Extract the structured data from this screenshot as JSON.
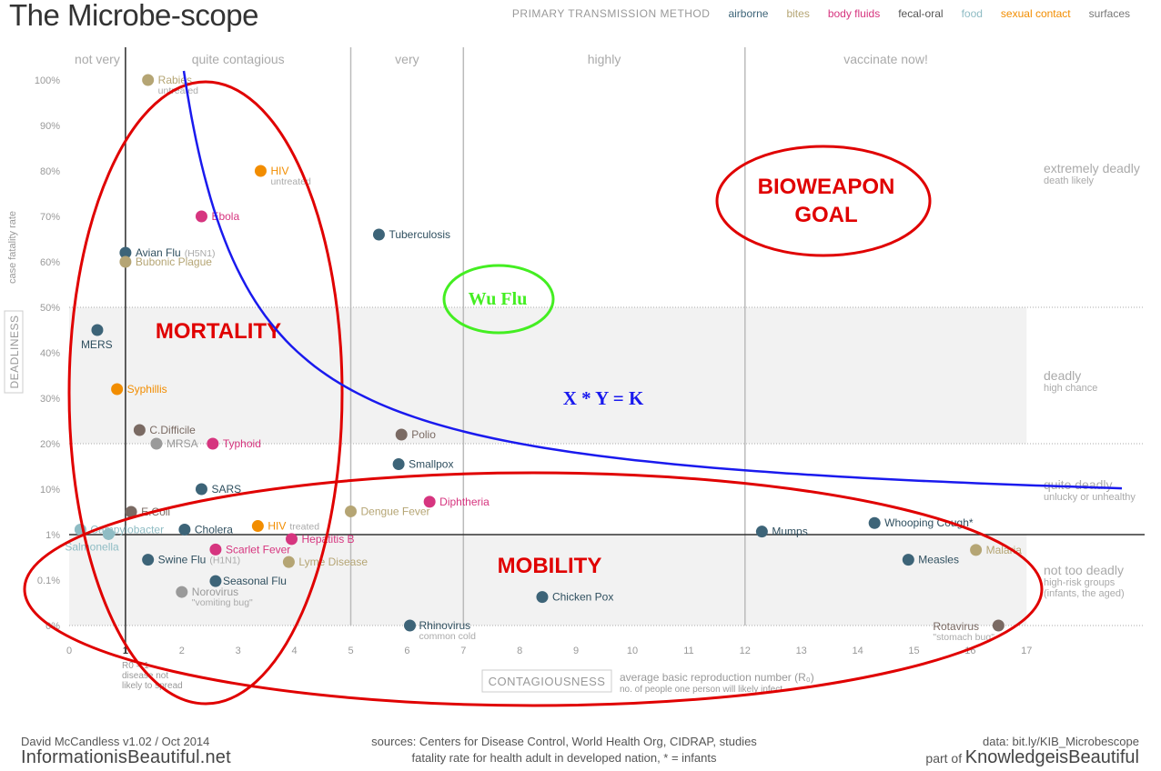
{
  "title": "The Microbe-scope",
  "legend": {
    "title": "PRIMARY TRANSMISSION METHOD",
    "items": [
      {
        "key": "airborne",
        "label": "airborne",
        "color": "#3d6478"
      },
      {
        "key": "bites",
        "label": "bites",
        "color": "#b5a574"
      },
      {
        "key": "body",
        "label": "body fluids",
        "color": "#d6357f"
      },
      {
        "key": "fecal",
        "label": "fecal-oral",
        "color": "#7a6a63"
      },
      {
        "key": "food",
        "label": "food",
        "color": "#8fbcc4"
      },
      {
        "key": "sexual",
        "label": "sexual contact",
        "color": "#f28d00"
      },
      {
        "key": "surfaces",
        "label": "surfaces",
        "color": "#9a9a9a"
      }
    ]
  },
  "chart_data": {
    "type": "scatter",
    "xlabel": "CONTAGIOUSNESS",
    "xlabel_sub1": "average basic reproduction number (R₀)",
    "xlabel_sub2": "no. of people one person will likely infect",
    "ylabel": "DEADLINESS",
    "ylabel_sub": "case fatality rate",
    "xlim": [
      0,
      17
    ],
    "x_ticks": [
      {
        "v": 0,
        "label": "0"
      },
      {
        "v": 1,
        "label": "1"
      },
      {
        "v": 2,
        "label": "2"
      },
      {
        "v": 3,
        "label": "3"
      },
      {
        "v": 4,
        "label": "4"
      },
      {
        "v": 5,
        "label": "5"
      },
      {
        "v": 6,
        "label": "6"
      },
      {
        "v": 7,
        "label": "7"
      },
      {
        "v": 8,
        "label": "8"
      },
      {
        "v": 9,
        "label": "9"
      },
      {
        "v": 10,
        "label": "10"
      },
      {
        "v": 11,
        "label": "11"
      },
      {
        "v": 12,
        "label": "12"
      },
      {
        "v": 13,
        "label": "13"
      },
      {
        "v": 14,
        "label": "14"
      },
      {
        "v": 15,
        "label": "15"
      },
      {
        "v": 16,
        "label": "16"
      },
      {
        "v": 17,
        "label": "17"
      }
    ],
    "y_ticks": [
      "0%",
      "0.1%",
      "1%",
      "10%",
      "20%",
      "30%",
      "40%",
      "50%",
      "60%",
      "70%",
      "80%",
      "90%",
      "100%"
    ],
    "r0_note": [
      "R0 = 1",
      "disease not",
      "likely to spread"
    ],
    "contagion_bands": [
      {
        "label": "not very",
        "from": 0,
        "to": 1
      },
      {
        "label": "quite contagious",
        "from": 1,
        "to": 5
      },
      {
        "label": "very",
        "from": 5,
        "to": 7
      },
      {
        "label": "highly",
        "from": 7,
        "to": 12
      },
      {
        "label": "vaccinate now!",
        "from": 12,
        "to": 17
      }
    ],
    "deadliness_bands": [
      {
        "label": "extremely deadly",
        "sub": "death likely",
        "at": "80%"
      },
      {
        "label": "deadly",
        "sub": "high chance",
        "at": "30%"
      },
      {
        "label": "quite deadly",
        "sub": "unlucky or unhealthy",
        "at": "10%"
      },
      {
        "label": "not too deadly",
        "sub": "high-risk groups",
        "sub2": "(infants, the aged)",
        "at": "0.1%"
      }
    ],
    "points": [
      {
        "name": "Rabies",
        "sub": "untreated",
        "x": 1.4,
        "y": "100%",
        "t": "bites"
      },
      {
        "name": "HIV",
        "sub": "untreated",
        "x": 3.4,
        "y": "80%",
        "t": "sexual"
      },
      {
        "name": "Ebola",
        "x": 2.35,
        "y": "70%",
        "t": "body"
      },
      {
        "name": "Tuberculosis",
        "x": 5.5,
        "y": "66%",
        "t": "airborne"
      },
      {
        "name": "Avian Flu",
        "sub": "(H5N1)",
        "x": 1.0,
        "y": "62%",
        "t": "airborne"
      },
      {
        "name": "Bubonic Plague",
        "x": 1.0,
        "y": "60%",
        "t": "bites"
      },
      {
        "name": "MERS",
        "x": 0.5,
        "y": "45%",
        "t": "airborne"
      },
      {
        "name": "Syphillis",
        "x": 0.85,
        "y": "32%",
        "t": "sexual"
      },
      {
        "name": "C.Difficile",
        "x": 1.25,
        "y": "23%",
        "t": "fecal"
      },
      {
        "name": "MRSA",
        "x": 1.55,
        "y": "20%",
        "t": "surfaces"
      },
      {
        "name": "Typhoid",
        "x": 2.55,
        "y": "20%",
        "t": "body"
      },
      {
        "name": "Polio",
        "x": 5.9,
        "y": "22%",
        "t": "fecal"
      },
      {
        "name": "Smallpox",
        "x": 5.85,
        "y": "15.5%",
        "t": "airborne"
      },
      {
        "name": "SARS",
        "x": 2.35,
        "y": "10%",
        "t": "airborne"
      },
      {
        "name": "Diphtheria",
        "x": 6.4,
        "y": "7.5%",
        "t": "body"
      },
      {
        "name": "E.Coli",
        "x": 1.1,
        "y": "5.5%",
        "t": "fecal"
      },
      {
        "name": "Dengue Fever",
        "x": 5.0,
        "y": "5.6%",
        "t": "bites"
      },
      {
        "name": "Campylobacter",
        "x": 0.2,
        "y": "2%",
        "t": "food"
      },
      {
        "name": "Salmonella",
        "x": 0.7,
        "y": "1.1%",
        "t": "food"
      },
      {
        "name": "Cholera",
        "x": 2.05,
        "y": "2%",
        "t": "airborne"
      },
      {
        "name": "HIV",
        "sub": "treated",
        "x": 3.35,
        "y": "2.7%",
        "t": "sexual"
      },
      {
        "name": "Mumps",
        "x": 12.3,
        "y": "1.6%",
        "t": "airborne"
      },
      {
        "name": "Whooping Cough*",
        "x": 14.3,
        "y": "3.3%",
        "t": "airborne"
      },
      {
        "name": "Hepatitis B",
        "x": 3.95,
        "y": "0.8%",
        "t": "body"
      },
      {
        "name": "Scarlet Fever",
        "x": 2.6,
        "y": "0.47%",
        "t": "body"
      },
      {
        "name": "Swine Flu",
        "sub": "(H1N1)",
        "x": 1.4,
        "y": "0.28%",
        "t": "airborne"
      },
      {
        "name": "Seasonal Flu",
        "x": 2.6,
        "y": "0.09%",
        "t": "airborne"
      },
      {
        "name": "Lyme Disease",
        "x": 3.9,
        "y": "0.25%",
        "t": "bites"
      },
      {
        "name": "Malaria",
        "x": 16.1,
        "y": "0.46%",
        "t": "bites"
      },
      {
        "name": "Measles",
        "x": 14.9,
        "y": "0.28%",
        "t": "airborne"
      },
      {
        "name": "Norovirus",
        "sub": "\"vomiting bug\"",
        "x": 2.0,
        "y": "0.03%",
        "t": "surfaces"
      },
      {
        "name": "Chicken Pox",
        "x": 8.4,
        "y": "0.018%",
        "t": "airborne"
      },
      {
        "name": "Rhinovirus",
        "sub": "common cold",
        "x": 6.05,
        "y": "0.001%",
        "t": "airborne"
      },
      {
        "name": "Rotavirus",
        "sub": "\"stomach bug\"",
        "x": 16.5,
        "y": "0.001%",
        "t": "fecal"
      }
    ]
  },
  "annotations": {
    "mortality": "MORTALITY",
    "mobility": "MOBILITY",
    "bioweapon_1": "BIOWEAPON",
    "bioweapon_2": "GOAL",
    "wuflu": "Wu  Flu",
    "equation": "X  *  Y  =  K"
  },
  "footer": {
    "author": "David McCandless v1.02 / Oct 2014",
    "site": "InformationisBeautiful.net",
    "sources_1": "sources: Centers for Disease Control, World Health Org, CIDRAP, studies",
    "sources_2": "fatality rate for health adult in developed nation, * = infants",
    "data": "data: bit.ly/KIB_Microbescope",
    "partof": "part of",
    "brand": "KnowledgeisBeautiful"
  }
}
